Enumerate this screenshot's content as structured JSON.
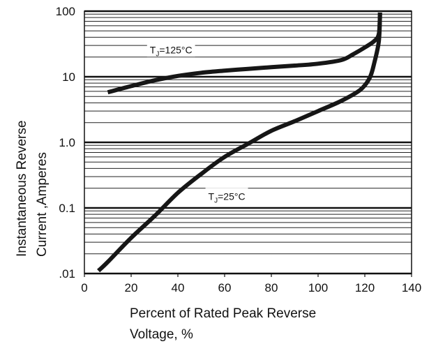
{
  "chart_data": {
    "type": "line",
    "xlabel": "Percent of Rated Peak Reverse Voltage, %",
    "xlabel_lines": [
      "Percent of Rated Peak Reverse",
      "Voltage, %"
    ],
    "ylabel": "Instantaneous Reverse Current ,Amperes",
    "ylabel_lines": [
      "Instantaneous Reverse",
      "Current ,Amperes"
    ],
    "xlim": [
      0,
      140
    ],
    "ylim": [
      0.01,
      100
    ],
    "yscale": "log",
    "grid": true,
    "x_ticks": [
      0,
      20,
      40,
      60,
      80,
      100,
      120,
      140
    ],
    "x_tick_labels": [
      "0",
      "20",
      "40",
      "60",
      "80",
      "100",
      "120",
      "140"
    ],
    "y_ticks": [
      0.01,
      0.1,
      1,
      10,
      100
    ],
    "y_tick_labels": [
      ".01",
      "0.1",
      "1.0",
      "10",
      "100"
    ],
    "series": [
      {
        "name": "Tj=125°C",
        "label_main": "T",
        "label_sub": "J",
        "label_rest": "=125°C",
        "label_near": [
          28,
          24
        ],
        "x": [
          10,
          20,
          30,
          40,
          50,
          60,
          70,
          80,
          90,
          100,
          110,
          115,
          120,
          124,
          126,
          126.5
        ],
        "y": [
          5.8,
          7.2,
          8.8,
          10.3,
          11.5,
          12.4,
          13.2,
          14.0,
          14.8,
          15.8,
          18.0,
          22,
          28,
          35,
          45,
          95
        ]
      },
      {
        "name": "Tj=25°C",
        "label_main": "T",
        "label_sub": "J",
        "label_rest": "=25°C",
        "label_near": [
          53,
          0.14
        ],
        "x": [
          6,
          10,
          20,
          30,
          40,
          50,
          60,
          70,
          80,
          90,
          100,
          110,
          118,
          122,
          124,
          126,
          126.5
        ],
        "y": [
          0.011,
          0.015,
          0.035,
          0.075,
          0.17,
          0.33,
          0.6,
          0.95,
          1.5,
          2.1,
          3.0,
          4.3,
          6.3,
          9.5,
          16,
          35,
          95
        ]
      }
    ]
  }
}
